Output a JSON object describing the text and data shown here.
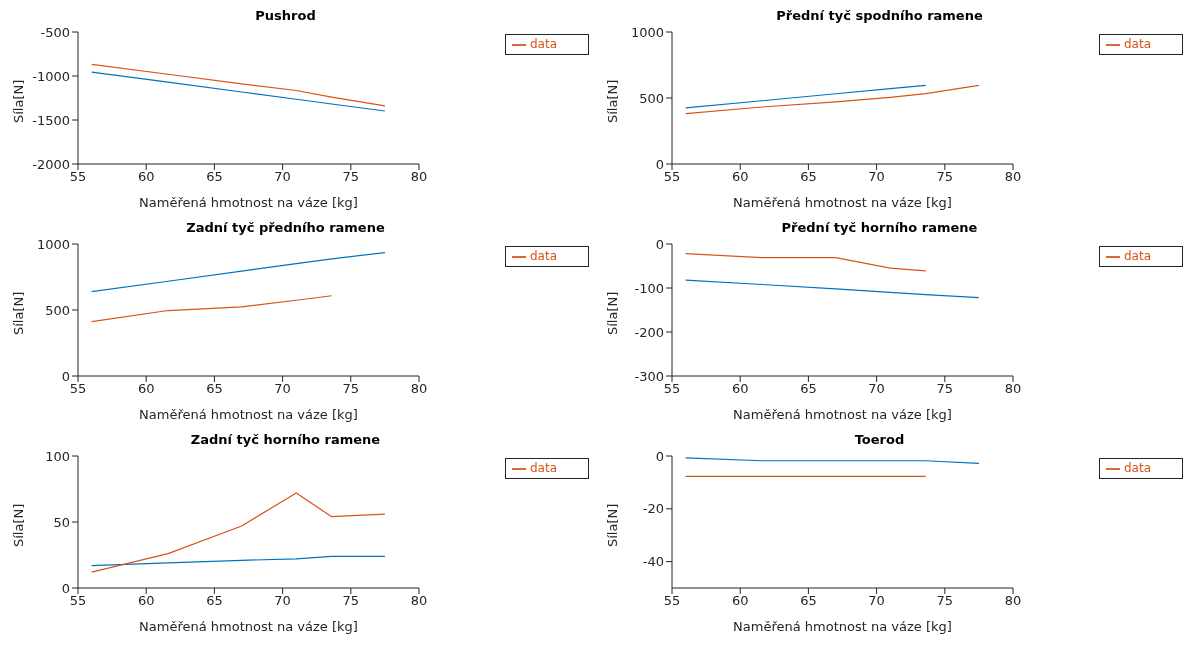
{
  "chart_data": [
    {
      "type": "line",
      "title": "Pushrod",
      "xlabel": "Naměřená hmotnost na váze [kg]",
      "ylabel": "Síla[N]",
      "x": [
        56,
        61.6,
        67,
        71,
        73.6,
        77.5
      ],
      "xlim": [
        55,
        80
      ],
      "xticks": [
        55,
        60,
        65,
        70,
        75,
        80
      ],
      "ylim": [
        -2000,
        -500
      ],
      "yticks": [
        -2000,
        -1500,
        -1000,
        -500
      ],
      "grid": false,
      "legend": "top right",
      "marker": "none",
      "line_style": "solid",
      "series": [
        {
          "color": "#0072bd",
          "values": [
            -955,
            -1070,
            -1182,
            -1264,
            -1318,
            -1398
          ]
        },
        {
          "name": "data",
          "color": "#d95319",
          "values": [
            -868,
            -980,
            -1090,
            -1165,
            -1240,
            -1340
          ]
        }
      ]
    },
    {
      "type": "line",
      "title": "Přední tyč spodního ramene",
      "xlabel": "Naměřená hmotnost na váze [kg]",
      "ylabel": "Síla[N]",
      "x": [
        56,
        61.6,
        67,
        71,
        73.6,
        77.5
      ],
      "xlim": [
        55,
        80
      ],
      "xticks": [
        55,
        60,
        65,
        70,
        75,
        80
      ],
      "ylim": [
        0,
        1000
      ],
      "yticks": [
        0,
        500,
        1000
      ],
      "grid": false,
      "legend": "top right",
      "marker": "none",
      "line_style": "solid",
      "series": [
        {
          "color": "#0072bd",
          "values": [
            425,
            479,
            532,
            571,
            596,
            null
          ]
        },
        {
          "name": "data",
          "color": "#d95319",
          "values": [
            382,
            432,
            470,
            505,
            533,
            595
          ]
        }
      ]
    },
    {
      "type": "line",
      "title": "Zadní tyč předního ramene",
      "xlabel": "Naměřená hmotnost na váze [kg]",
      "ylabel": "Síla[N]",
      "x": [
        56,
        61.6,
        67,
        71,
        73.6,
        77.5
      ],
      "xlim": [
        55,
        80
      ],
      "xticks": [
        55,
        60,
        65,
        70,
        75,
        80
      ],
      "ylim": [
        0,
        1000
      ],
      "yticks": [
        0,
        500,
        1000
      ],
      "grid": false,
      "legend": "top right",
      "marker": "none",
      "line_style": "solid",
      "series": [
        {
          "color": "#0072bd",
          "values": [
            639,
            718,
            795,
            851,
            888,
            935
          ]
        },
        {
          "name": "data",
          "color": "#d95319",
          "values": [
            412,
            496,
            524,
            574,
            608,
            null
          ]
        }
      ]
    },
    {
      "type": "line",
      "title": "Přední tyč horního ramene",
      "xlabel": "Naměřená hmotnost na váze [kg]",
      "ylabel": "Síla[N]",
      "x": [
        56,
        61.6,
        67,
        71,
        73.6,
        77.5
      ],
      "xlim": [
        55,
        80
      ],
      "xticks": [
        55,
        60,
        65,
        70,
        75,
        80
      ],
      "ylim": [
        -300,
        0
      ],
      "yticks": [
        -300,
        -200,
        -100,
        0
      ],
      "grid": false,
      "legend": "top right",
      "marker": "none",
      "line_style": "solid",
      "series": [
        {
          "color": "#0072bd",
          "values": [
            -82,
            -92,
            -102,
            -110,
            -115,
            -122
          ]
        },
        {
          "name": "data",
          "color": "#d95319",
          "values": [
            -22,
            -31,
            -31,
            -55,
            -61,
            null
          ]
        }
      ]
    },
    {
      "type": "line",
      "title": "Zadní tyč horního ramene",
      "xlabel": "Naměřená hmotnost na váze [kg]",
      "ylabel": "Síla[N]",
      "x": [
        56,
        61.6,
        67,
        71,
        73.6,
        77.5
      ],
      "xlim": [
        55,
        80
      ],
      "xticks": [
        55,
        60,
        65,
        70,
        75,
        80
      ],
      "ylim": [
        0,
        100
      ],
      "yticks": [
        0,
        50,
        100
      ],
      "grid": false,
      "legend": "top right",
      "marker": "none",
      "line_style": "solid",
      "series": [
        {
          "color": "#0072bd",
          "values": [
            17,
            19,
            21,
            22,
            24,
            24
          ]
        },
        {
          "name": "data",
          "color": "#d95319",
          "values": [
            12,
            26,
            47,
            72,
            54,
            56
          ]
        }
      ]
    },
    {
      "type": "line",
      "title": "Toerod",
      "xlabel": "Naměřená hmotnost na váze [kg]",
      "ylabel": "Síla[N]",
      "x": [
        56,
        61.6,
        67,
        71,
        73.6,
        77.5
      ],
      "xlim": [
        55,
        80
      ],
      "xticks": [
        55,
        60,
        65,
        70,
        75,
        80
      ],
      "ylim": [
        -50,
        0
      ],
      "yticks": [
        -40,
        -20,
        0
      ],
      "grid": false,
      "legend": "top right",
      "marker": "none",
      "line_style": "solid",
      "series": [
        {
          "color": "#0072bd",
          "values": [
            -0.7,
            -1.8,
            -1.8,
            -1.8,
            -1.8,
            -2.8
          ]
        },
        {
          "name": "data",
          "color": "#d95319",
          "values": [
            -7.7,
            -7.7,
            -7.7,
            -7.7,
            -7.7,
            null
          ]
        }
      ]
    }
  ]
}
